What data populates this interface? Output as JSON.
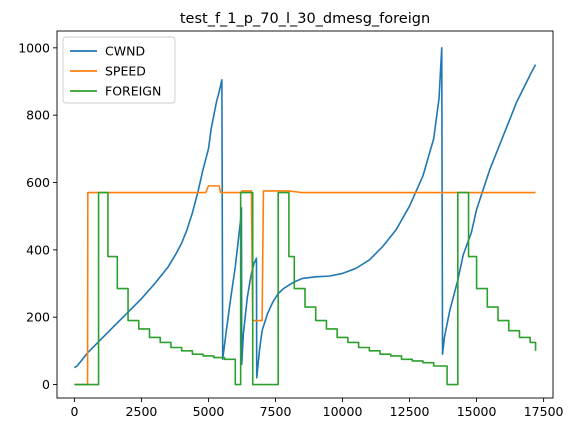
{
  "chart_data": {
    "type": "line",
    "title": "test_f_1_p_70_l_30_dmesg_foreign",
    "xlabel": "",
    "ylabel": "",
    "xlim": [
      -650,
      17850
    ],
    "ylim": [
      -40,
      1050
    ],
    "xticks": [
      0,
      2500,
      5000,
      7500,
      10000,
      12500,
      15000,
      17500
    ],
    "yticks": [
      0,
      200,
      400,
      600,
      800,
      1000
    ],
    "grid": false,
    "legend_position": "top-left",
    "series": [
      {
        "name": "CWND",
        "color": "#1f77b4",
        "points": [
          [
            0,
            50
          ],
          [
            100,
            55
          ],
          [
            250,
            70
          ],
          [
            500,
            95
          ],
          [
            1000,
            135
          ],
          [
            1500,
            175
          ],
          [
            2000,
            215
          ],
          [
            2500,
            255
          ],
          [
            3000,
            300
          ],
          [
            3500,
            350
          ],
          [
            3800,
            390
          ],
          [
            4000,
            420
          ],
          [
            4200,
            460
          ],
          [
            4400,
            510
          ],
          [
            4600,
            570
          ],
          [
            4800,
            640
          ],
          [
            5000,
            700
          ],
          [
            5100,
            760
          ],
          [
            5200,
            800
          ],
          [
            5300,
            840
          ],
          [
            5400,
            870
          ],
          [
            5500,
            905
          ],
          [
            5530,
            75
          ],
          [
            5650,
            150
          ],
          [
            5800,
            240
          ],
          [
            6000,
            350
          ],
          [
            6100,
            420
          ],
          [
            6200,
            490
          ],
          [
            6230,
            525
          ],
          [
            6240,
            60
          ],
          [
            6300,
            150
          ],
          [
            6450,
            260
          ],
          [
            6600,
            330
          ],
          [
            6700,
            360
          ],
          [
            6790,
            375
          ],
          [
            6800,
            20
          ],
          [
            6900,
            100
          ],
          [
            7000,
            160
          ],
          [
            7200,
            210
          ],
          [
            7400,
            245
          ],
          [
            7600,
            270
          ],
          [
            7800,
            285
          ],
          [
            8000,
            295
          ],
          [
            8200,
            305
          ],
          [
            8500,
            315
          ],
          [
            9000,
            320
          ],
          [
            9500,
            322
          ],
          [
            10000,
            330
          ],
          [
            10500,
            345
          ],
          [
            11000,
            370
          ],
          [
            11500,
            410
          ],
          [
            12000,
            460
          ],
          [
            12500,
            530
          ],
          [
            13000,
            620
          ],
          [
            13400,
            730
          ],
          [
            13600,
            850
          ],
          [
            13700,
            1000
          ],
          [
            13730,
            90
          ],
          [
            13800,
            140
          ],
          [
            14000,
            220
          ],
          [
            14300,
            310
          ],
          [
            14500,
            385
          ],
          [
            14800,
            450
          ],
          [
            15000,
            520
          ],
          [
            15500,
            640
          ],
          [
            16000,
            740
          ],
          [
            16500,
            840
          ],
          [
            17000,
            920
          ],
          [
            17200,
            950
          ]
        ]
      },
      {
        "name": "SPEED",
        "color": "#ff7f0e",
        "points": [
          [
            0,
            0
          ],
          [
            490,
            0
          ],
          [
            500,
            570
          ],
          [
            4900,
            570
          ],
          [
            5000,
            590
          ],
          [
            5400,
            590
          ],
          [
            5450,
            570
          ],
          [
            6200,
            570
          ],
          [
            6250,
            575
          ],
          [
            6600,
            575
          ],
          [
            6650,
            190
          ],
          [
            7000,
            190
          ],
          [
            7050,
            575
          ],
          [
            8000,
            575
          ],
          [
            8500,
            570
          ],
          [
            17200,
            570
          ]
        ]
      },
      {
        "name": "FOREIGN",
        "color": "#2ca02c",
        "points": [
          [
            0,
            0
          ],
          [
            900,
            0
          ],
          [
            900,
            570
          ],
          [
            1250,
            570
          ],
          [
            1250,
            380
          ],
          [
            1600,
            380
          ],
          [
            1600,
            285
          ],
          [
            2000,
            285
          ],
          [
            2000,
            190
          ],
          [
            2400,
            190
          ],
          [
            2400,
            165
          ],
          [
            2800,
            165
          ],
          [
            2800,
            140
          ],
          [
            3200,
            140
          ],
          [
            3200,
            125
          ],
          [
            3600,
            125
          ],
          [
            3600,
            110
          ],
          [
            4000,
            110
          ],
          [
            4000,
            100
          ],
          [
            4400,
            100
          ],
          [
            4400,
            90
          ],
          [
            4800,
            90
          ],
          [
            4800,
            85
          ],
          [
            5200,
            85
          ],
          [
            5200,
            80
          ],
          [
            5600,
            80
          ],
          [
            5600,
            75
          ],
          [
            6000,
            75
          ],
          [
            6000,
            0
          ],
          [
            6200,
            0
          ],
          [
            6200,
            570
          ],
          [
            6650,
            570
          ],
          [
            6650,
            0
          ],
          [
            7000,
            0
          ],
          [
            7000,
            0
          ],
          [
            7600,
            0
          ],
          [
            7600,
            570
          ],
          [
            8000,
            570
          ],
          [
            8000,
            380
          ],
          [
            8200,
            380
          ],
          [
            8200,
            285
          ],
          [
            8600,
            285
          ],
          [
            8600,
            230
          ],
          [
            9000,
            230
          ],
          [
            9000,
            190
          ],
          [
            9400,
            190
          ],
          [
            9400,
            165
          ],
          [
            9800,
            165
          ],
          [
            9800,
            140
          ],
          [
            10200,
            140
          ],
          [
            10200,
            125
          ],
          [
            10600,
            125
          ],
          [
            10600,
            110
          ],
          [
            11000,
            110
          ],
          [
            11000,
            100
          ],
          [
            11400,
            100
          ],
          [
            11400,
            90
          ],
          [
            11800,
            90
          ],
          [
            11800,
            85
          ],
          [
            12200,
            85
          ],
          [
            12200,
            75
          ],
          [
            12600,
            75
          ],
          [
            12600,
            70
          ],
          [
            13000,
            70
          ],
          [
            13000,
            65
          ],
          [
            13400,
            65
          ],
          [
            13400,
            55
          ],
          [
            13900,
            55
          ],
          [
            13900,
            0
          ],
          [
            14300,
            0
          ],
          [
            14300,
            570
          ],
          [
            14700,
            570
          ],
          [
            14700,
            380
          ],
          [
            15000,
            380
          ],
          [
            15000,
            285
          ],
          [
            15400,
            285
          ],
          [
            15400,
            230
          ],
          [
            15800,
            230
          ],
          [
            15800,
            190
          ],
          [
            16200,
            190
          ],
          [
            16200,
            160
          ],
          [
            16600,
            160
          ],
          [
            16600,
            140
          ],
          [
            17000,
            140
          ],
          [
            17000,
            125
          ],
          [
            17200,
            125
          ],
          [
            17200,
            100
          ]
        ]
      }
    ]
  }
}
